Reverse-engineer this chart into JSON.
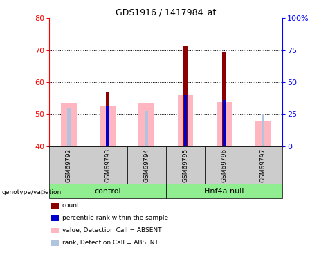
{
  "title": "GDS1916 / 1417984_at",
  "samples": [
    "GSM69792",
    "GSM69793",
    "GSM69794",
    "GSM69795",
    "GSM69796",
    "GSM69797"
  ],
  "ylim_left": [
    40,
    80
  ],
  "ylim_right": [
    0,
    100
  ],
  "yticks_left": [
    40,
    50,
    60,
    70,
    80
  ],
  "yticks_right": [
    0,
    25,
    50,
    75,
    100
  ],
  "baseline": 40,
  "red_bars": [
    null,
    57.0,
    null,
    71.5,
    69.5,
    null
  ],
  "blue_marks": [
    null,
    52.5,
    null,
    56.0,
    54.5,
    null
  ],
  "pink_bars": [
    53.5,
    52.5,
    53.5,
    56.0,
    54.0,
    48.0
  ],
  "lightblue_marks": [
    52.0,
    null,
    51.0,
    null,
    null,
    50.0
  ],
  "color_red": "#8B0000",
  "color_blue": "#0000CC",
  "color_pink": "#FFB6C1",
  "color_lightblue": "#B0C4DE",
  "sample_area_color": "#CCCCCC",
  "group_color": "#90EE90",
  "legend_items": [
    {
      "color": "#8B0000",
      "label": "count"
    },
    {
      "color": "#0000CC",
      "label": "percentile rank within the sample"
    },
    {
      "color": "#FFB6C1",
      "label": "value, Detection Call = ABSENT"
    },
    {
      "color": "#B0C4DE",
      "label": "rank, Detection Call = ABSENT"
    }
  ]
}
